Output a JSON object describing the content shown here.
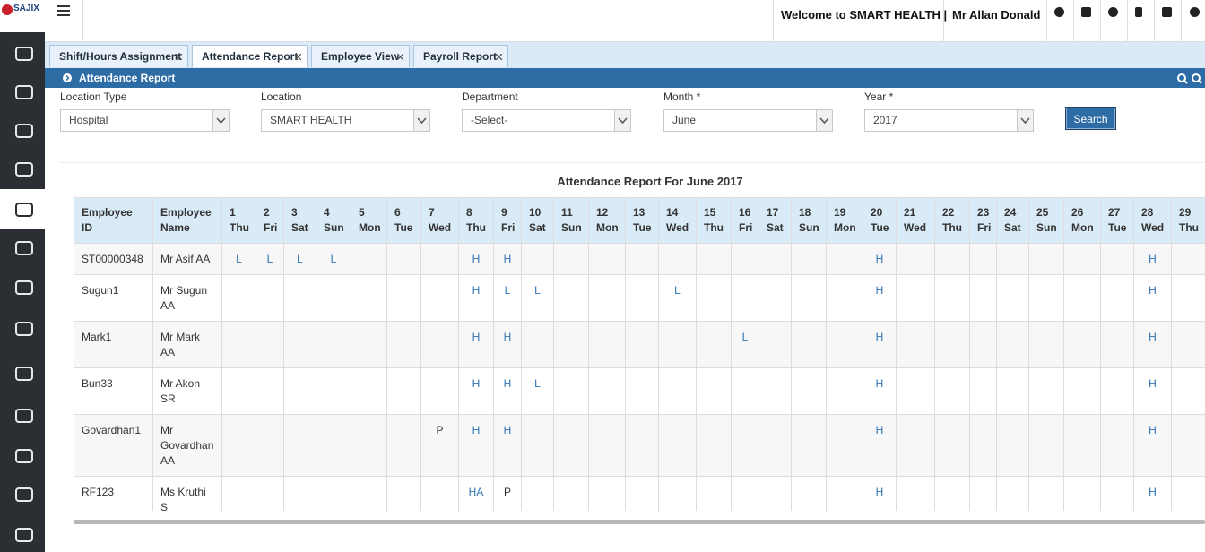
{
  "logo": "SAJIX",
  "header": {
    "welcome": "Welcome to SMART HEALTH |",
    "user": "Mr Allan Donald"
  },
  "tabs": [
    "Shift/Hours Assignment",
    "Attendance Report",
    "Employee View",
    "Payroll Report"
  ],
  "panel_title": "Attendance Report",
  "filters": [
    {
      "label": "Location Type",
      "value": "Hospital"
    },
    {
      "label": "Location",
      "value": "SMART HEALTH"
    },
    {
      "label": "Department",
      "value": "-Select-"
    },
    {
      "label": "Month *",
      "value": "June"
    },
    {
      "label": "Year *",
      "value": "2017"
    }
  ],
  "search": "Search",
  "report_title": "Attendance Report For June 2017",
  "table": {
    "id_header": "Employee ID",
    "name_header": "Employee Name",
    "days": [
      {
        "day": 1,
        "weekday": "Thu"
      },
      {
        "day": 2,
        "weekday": "Fri"
      },
      {
        "day": 3,
        "weekday": "Sat"
      },
      {
        "day": 4,
        "weekday": "Sun"
      },
      {
        "day": 5,
        "weekday": "Mon"
      },
      {
        "day": 6,
        "weekday": "Tue"
      },
      {
        "day": 7,
        "weekday": "Wed"
      },
      {
        "day": 8,
        "weekday": "Thu"
      },
      {
        "day": 9,
        "weekday": "Fri"
      },
      {
        "day": 10,
        "weekday": "Sat"
      },
      {
        "day": 11,
        "weekday": "Sun"
      },
      {
        "day": 12,
        "weekday": "Mon"
      },
      {
        "day": 13,
        "weekday": "Tue"
      },
      {
        "day": 14,
        "weekday": "Wed"
      },
      {
        "day": 15,
        "weekday": "Thu"
      },
      {
        "day": 16,
        "weekday": "Fri"
      },
      {
        "day": 17,
        "weekday": "Sat"
      },
      {
        "day": 18,
        "weekday": "Sun"
      },
      {
        "day": 19,
        "weekday": "Mon"
      },
      {
        "day": 20,
        "weekday": "Tue"
      },
      {
        "day": 21,
        "weekday": "Wed"
      },
      {
        "day": 22,
        "weekday": "Thu"
      },
      {
        "day": 23,
        "weekday": "Fri"
      },
      {
        "day": 24,
        "weekday": "Sat"
      },
      {
        "day": 25,
        "weekday": "Sun"
      },
      {
        "day": 26,
        "weekday": "Mon"
      },
      {
        "day": 27,
        "weekday": "Tue"
      },
      {
        "day": 28,
        "weekday": "Wed"
      },
      {
        "day": 29,
        "weekday": "Thu"
      }
    ],
    "rows": [
      {
        "id": "ST00000348",
        "name": "Mr Asif AA",
        "cells": [
          "L",
          "L",
          "L",
          "L",
          null,
          null,
          null,
          "H",
          "H",
          null,
          null,
          null,
          null,
          null,
          null,
          null,
          null,
          null,
          null,
          "H",
          null,
          null,
          null,
          null,
          null,
          null,
          null,
          "H",
          null
        ]
      },
      {
        "id": "Sugun1",
        "name": "Mr Sugun AA",
        "cells": [
          null,
          null,
          null,
          null,
          null,
          null,
          null,
          "H",
          "L",
          "L",
          null,
          null,
          null,
          "L",
          null,
          null,
          null,
          null,
          null,
          "H",
          null,
          null,
          null,
          null,
          null,
          null,
          null,
          "H",
          null
        ]
      },
      {
        "id": "Mark1",
        "name": "Mr Mark AA",
        "cells": [
          null,
          null,
          null,
          null,
          null,
          null,
          null,
          "H",
          "H",
          null,
          null,
          null,
          null,
          null,
          null,
          "L",
          null,
          null,
          null,
          "H",
          null,
          null,
          null,
          null,
          null,
          null,
          null,
          "H",
          null
        ]
      },
      {
        "id": "Bun33",
        "name": "Mr Akon SR",
        "cells": [
          null,
          null,
          null,
          null,
          null,
          null,
          null,
          "H",
          "H",
          "L",
          null,
          null,
          null,
          null,
          null,
          null,
          null,
          null,
          null,
          "H",
          null,
          null,
          null,
          null,
          null,
          null,
          null,
          "H",
          null
        ]
      },
      {
        "id": "Govardhan1",
        "name": "Mr Govardhan AA",
        "cells": [
          null,
          null,
          null,
          null,
          null,
          null,
          "P",
          "H",
          "H",
          null,
          null,
          null,
          null,
          null,
          null,
          null,
          null,
          null,
          null,
          "H",
          null,
          null,
          null,
          null,
          null,
          null,
          null,
          "H",
          null
        ]
      },
      {
        "id": "RF123",
        "name": "Ms Kruthi S",
        "cells": [
          null,
          null,
          null,
          null,
          null,
          null,
          null,
          "HA",
          "P",
          null,
          null,
          null,
          null,
          null,
          null,
          null,
          null,
          null,
          null,
          "H",
          null,
          null,
          null,
          null,
          null,
          null,
          null,
          "H",
          null
        ]
      }
    ],
    "status_colors": {
      "H": "#2f73b5",
      "L": "#2f73b5",
      "HA": "#2f73b5",
      "P": "#333333"
    }
  }
}
